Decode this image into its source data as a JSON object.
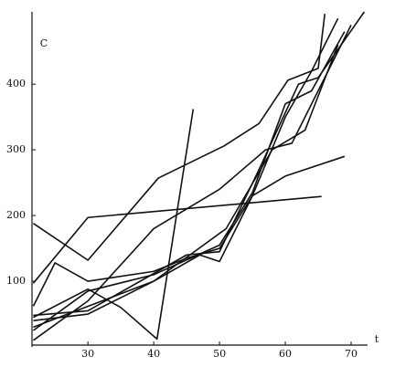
{
  "chart_data": {
    "type": "line",
    "y_label": "C",
    "x_label": "t",
    "xlim": [
      21.5,
      72.5
    ],
    "ylim": [
      0,
      510
    ],
    "xticks": [
      30,
      40,
      50,
      60,
      70
    ],
    "yticks": [
      100,
      200,
      300,
      400
    ],
    "color": "#111111",
    "series": [
      {
        "x": [
          21.7,
          30,
          40.7,
          50.7,
          56,
          60.4,
          65,
          66
        ],
        "values": [
          188,
          132,
          257,
          306,
          340,
          406,
          424,
          507
        ]
      },
      {
        "x": [
          21.7,
          30,
          65.5
        ],
        "values": [
          97,
          197,
          229
        ]
      },
      {
        "x": [
          21.7,
          25,
          30,
          40,
          45,
          50,
          55,
          60,
          64,
          68
        ],
        "values": [
          62,
          128,
          100,
          115,
          135,
          150,
          230,
          350,
          420,
          500
        ]
      },
      {
        "x": [
          21.7,
          30,
          35,
          40.5,
          46
        ],
        "values": [
          45,
          88,
          60,
          12,
          362
        ]
      },
      {
        "x": [
          21.7,
          30,
          40,
          47,
          50,
          55,
          60,
          69
        ],
        "values": [
          40,
          50,
          100,
          140,
          130,
          230,
          260,
          290
        ]
      },
      {
        "x": [
          21.7,
          30,
          40,
          50,
          55,
          60,
          64,
          69
        ],
        "values": [
          25,
          85,
          110,
          155,
          235,
          370,
          390,
          480
        ]
      },
      {
        "x": [
          21.7,
          30,
          40,
          50,
          57,
          61,
          65,
          70
        ],
        "values": [
          10,
          70,
          180,
          240,
          300,
          310,
          390,
          490
        ]
      },
      {
        "x": [
          21.7,
          30,
          45,
          50,
          56,
          62,
          65,
          72
        ],
        "values": [
          48,
          55,
          140,
          145,
          270,
          400,
          410,
          510
        ]
      },
      {
        "x": [
          21.7,
          40,
          51,
          58,
          63,
          68
        ],
        "values": [
          30,
          100,
          180,
          300,
          330,
          460
        ]
      }
    ]
  }
}
